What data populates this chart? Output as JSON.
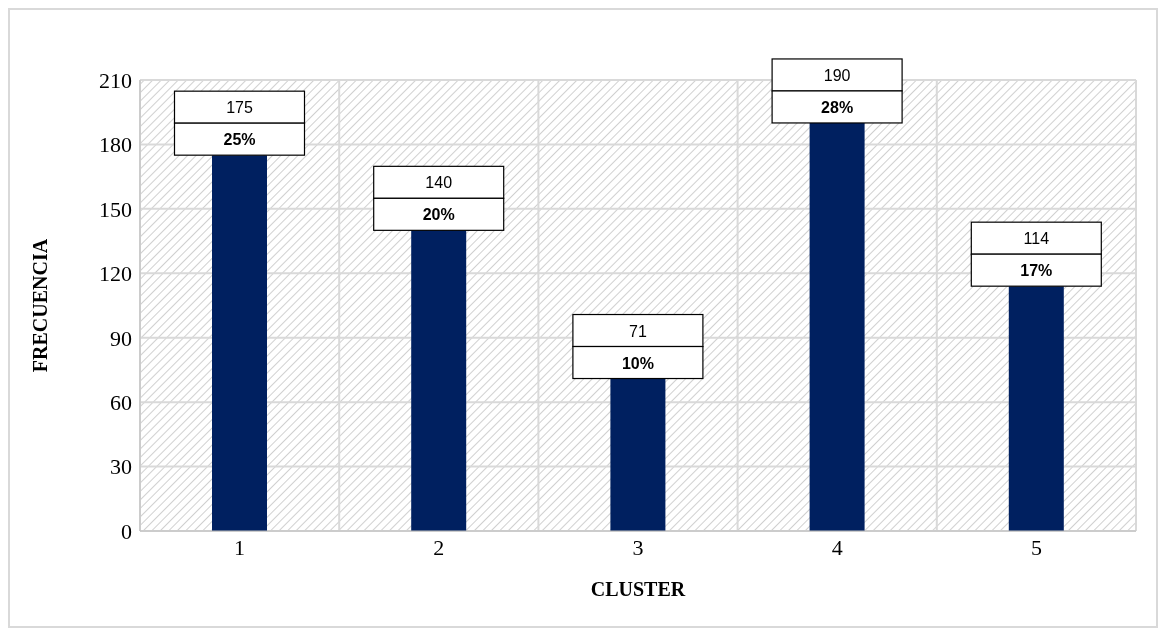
{
  "chart_data": {
    "type": "bar",
    "xlabel": "CLUSTER",
    "ylabel": "FRECUENCIA",
    "categories": [
      "1",
      "2",
      "3",
      "4",
      "5"
    ],
    "values": [
      175,
      140,
      71,
      190,
      114
    ],
    "color": "#002060",
    "ylim": [
      0,
      210
    ],
    "yticks": [
      0,
      30,
      60,
      90,
      120,
      150,
      180,
      210
    ],
    "grid": true,
    "data_labels": true,
    "annotations": [
      {
        "text": "25%",
        "x": "1",
        "y": 175
      },
      {
        "text": "20%",
        "x": "2",
        "y": 140
      },
      {
        "text": "10%",
        "x": "3",
        "y": 71
      },
      {
        "text": "28%",
        "x": "4",
        "y": 190
      },
      {
        "text": "17%",
        "x": "5",
        "y": 114
      }
    ]
  }
}
